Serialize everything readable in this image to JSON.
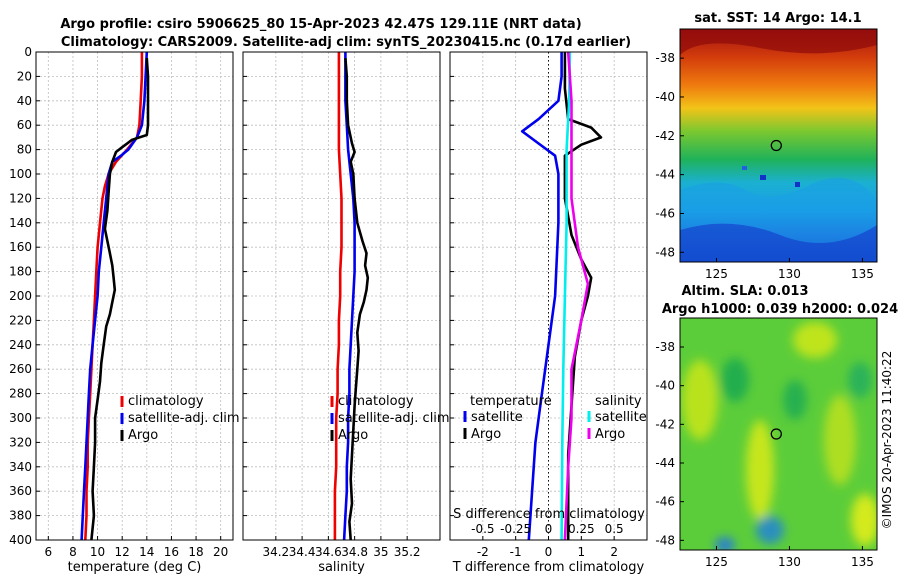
{
  "header": {
    "title_line1": "Argo profile: csiro 5906625_80 15-Apr-2023 42.47S 129.11E (NRT data)",
    "title_line2": "Climatology: CARS2009. Satellite-adj clim: synTS_20230415.nc (0.17d earlier)"
  },
  "colors": {
    "climatology": "#ee0000",
    "satellite": "#0000ee",
    "argo": "#000000",
    "sal_satellite": "#00eeee",
    "sal_argo": "#ee00ee"
  },
  "depth_axis": {
    "ticks": [
      0,
      20,
      40,
      60,
      80,
      100,
      120,
      140,
      160,
      180,
      200,
      220,
      240,
      260,
      280,
      300,
      320,
      340,
      360,
      380,
      400
    ]
  },
  "chart_data": [
    {
      "type": "line",
      "id": "temperature",
      "xlabel": "temperature (deg C)",
      "ylabel": "depth",
      "xlim": [
        5,
        21
      ],
      "ylim": [
        400,
        0
      ],
      "xticks": [
        6,
        8,
        10,
        12,
        14,
        16,
        18,
        20
      ],
      "grid": true,
      "legend": [
        "climatology",
        "satellite-adj. clim",
        "Argo"
      ],
      "series": [
        {
          "name": "climatology",
          "color": "climatology",
          "points": [
            [
              13.6,
              0
            ],
            [
              13.6,
              20
            ],
            [
              13.5,
              40
            ],
            [
              13.4,
              60
            ],
            [
              13.2,
              70
            ],
            [
              12.4,
              80
            ],
            [
              11.5,
              90
            ],
            [
              10.9,
              100
            ],
            [
              10.6,
              110
            ],
            [
              10.4,
              120
            ],
            [
              10.2,
              140
            ],
            [
              10.0,
              160
            ],
            [
              9.9,
              180
            ],
            [
              9.8,
              200
            ],
            [
              9.7,
              220
            ],
            [
              9.6,
              240
            ],
            [
              9.5,
              260
            ],
            [
              9.4,
              280
            ],
            [
              9.3,
              300
            ],
            [
              9.2,
              320
            ],
            [
              9.2,
              340
            ],
            [
              9.1,
              360
            ],
            [
              9.1,
              380
            ],
            [
              9.0,
              400
            ]
          ]
        },
        {
          "name": "satellite-adj. clim",
          "color": "satellite",
          "points": [
            [
              14.0,
              0
            ],
            [
              13.9,
              20
            ],
            [
              13.8,
              40
            ],
            [
              13.6,
              60
            ],
            [
              13.2,
              70
            ],
            [
              12.5,
              80
            ],
            [
              11.9,
              85
            ],
            [
              11.2,
              90
            ],
            [
              10.9,
              100
            ],
            [
              10.7,
              120
            ],
            [
              10.5,
              140
            ],
            [
              10.3,
              160
            ],
            [
              10.1,
              180
            ],
            [
              10.0,
              200
            ],
            [
              9.9,
              210
            ],
            [
              9.6,
              240
            ],
            [
              9.4,
              260
            ],
            [
              9.3,
              280
            ],
            [
              9.2,
              300
            ],
            [
              9.1,
              320
            ],
            [
              9.0,
              340
            ],
            [
              8.9,
              360
            ],
            [
              8.8,
              380
            ],
            [
              8.7,
              400
            ]
          ]
        },
        {
          "name": "Argo",
          "color": "argo",
          "points": [
            [
              14.0,
              5
            ],
            [
              14.1,
              20
            ],
            [
              14.1,
              40
            ],
            [
              14.1,
              60
            ],
            [
              14.0,
              68
            ],
            [
              12.8,
              72
            ],
            [
              12.0,
              78
            ],
            [
              11.5,
              82
            ],
            [
              11.2,
              90
            ],
            [
              11.0,
              100
            ],
            [
              10.9,
              115
            ],
            [
              10.8,
              130
            ],
            [
              10.6,
              145
            ],
            [
              10.8,
              155
            ],
            [
              11.0,
              165
            ],
            [
              11.2,
              175
            ],
            [
              11.3,
              185
            ],
            [
              11.4,
              195
            ],
            [
              11.2,
              205
            ],
            [
              11.0,
              215
            ],
            [
              10.7,
              225
            ],
            [
              10.5,
              240
            ],
            [
              10.3,
              255
            ],
            [
              10.2,
              270
            ],
            [
              10.0,
              285
            ],
            [
              9.8,
              300
            ],
            [
              9.8,
              320
            ],
            [
              9.7,
              340
            ],
            [
              9.6,
              360
            ],
            [
              9.7,
              380
            ],
            [
              9.5,
              400
            ]
          ]
        }
      ]
    },
    {
      "type": "line",
      "id": "salinity",
      "xlabel": "salinity",
      "ylabel": "depth",
      "xlim": [
        33.95,
        35.45
      ],
      "ylim": [
        400,
        0
      ],
      "xticks": [
        34.2,
        34.4,
        34.6,
        34.8,
        35.0,
        35.2
      ],
      "xticklabels": [
        "34.2",
        "34.4",
        "34.6",
        "34.8",
        "35",
        "35.2"
      ],
      "grid": true,
      "legend": [
        "climatology",
        "satellite-adj. clim",
        "Argo"
      ],
      "series": [
        {
          "name": "climatology",
          "color": "climatology",
          "points": [
            [
              34.68,
              0
            ],
            [
              34.68,
              20
            ],
            [
              34.68,
              40
            ],
            [
              34.68,
              60
            ],
            [
              34.68,
              80
            ],
            [
              34.69,
              100
            ],
            [
              34.7,
              120
            ],
            [
              34.7,
              140
            ],
            [
              34.7,
              160
            ],
            [
              34.69,
              180
            ],
            [
              34.69,
              200
            ],
            [
              34.68,
              220
            ],
            [
              34.68,
              240
            ],
            [
              34.67,
              260
            ],
            [
              34.67,
              280
            ],
            [
              34.66,
              300
            ],
            [
              34.66,
              320
            ],
            [
              34.66,
              340
            ],
            [
              34.65,
              360
            ],
            [
              34.65,
              380
            ],
            [
              34.65,
              400
            ]
          ]
        },
        {
          "name": "satellite-adj. clim",
          "color": "satellite",
          "points": [
            [
              34.73,
              0
            ],
            [
              34.73,
              20
            ],
            [
              34.73,
              40
            ],
            [
              34.74,
              60
            ],
            [
              34.75,
              80
            ],
            [
              34.77,
              100
            ],
            [
              34.79,
              120
            ],
            [
              34.8,
              140
            ],
            [
              34.8,
              160
            ],
            [
              34.8,
              180
            ],
            [
              34.79,
              200
            ],
            [
              34.78,
              220
            ],
            [
              34.77,
              240
            ],
            [
              34.76,
              260
            ],
            [
              34.76,
              280
            ],
            [
              34.75,
              300
            ],
            [
              34.75,
              320
            ],
            [
              34.74,
              340
            ],
            [
              34.74,
              360
            ],
            [
              34.73,
              380
            ],
            [
              34.72,
              400
            ]
          ]
        },
        {
          "name": "Argo",
          "color": "argo",
          "points": [
            [
              34.73,
              5
            ],
            [
              34.74,
              20
            ],
            [
              34.74,
              40
            ],
            [
              34.75,
              60
            ],
            [
              34.78,
              75
            ],
            [
              34.8,
              82
            ],
            [
              34.77,
              90
            ],
            [
              34.79,
              100
            ],
            [
              34.8,
              120
            ],
            [
              34.82,
              140
            ],
            [
              34.86,
              155
            ],
            [
              34.89,
              165
            ],
            [
              34.88,
              175
            ],
            [
              34.9,
              185
            ],
            [
              34.89,
              195
            ],
            [
              34.87,
              205
            ],
            [
              34.84,
              215
            ],
            [
              34.82,
              230
            ],
            [
              34.83,
              245
            ],
            [
              34.82,
              260
            ],
            [
              34.81,
              275
            ],
            [
              34.8,
              290
            ],
            [
              34.79,
              310
            ],
            [
              34.78,
              330
            ],
            [
              34.77,
              350
            ],
            [
              34.78,
              370
            ],
            [
              34.76,
              385
            ],
            [
              34.77,
              400
            ]
          ]
        }
      ]
    },
    {
      "type": "line",
      "id": "difference",
      "xlabel": "T difference from climatology",
      "ylabel": "depth",
      "xlim": [
        -3,
        3
      ],
      "ylim": [
        400,
        0
      ],
      "xticks": [
        -2,
        -1,
        0,
        1,
        2
      ],
      "top_axis": {
        "label": "S difference from climatology",
        "ticks": [
          -0.5,
          -0.25,
          0,
          0.25,
          0.5
        ],
        "ticklabels": [
          "-0.5",
          "-0.25",
          "0",
          "0.25",
          "0.5"
        ]
      },
      "grid": true,
      "legend_left": {
        "title": "temperature",
        "entries": [
          "satellite",
          "Argo"
        ]
      },
      "legend_right": {
        "title": "salinity",
        "entries": [
          "satellite",
          "Argo"
        ]
      },
      "series": [
        {
          "name": "temperature satellite",
          "color": "satellite",
          "points": [
            [
              0.4,
              0
            ],
            [
              0.4,
              20
            ],
            [
              0.3,
              40
            ],
            [
              -0.3,
              55
            ],
            [
              -0.8,
              65
            ],
            [
              -0.3,
              75
            ],
            [
              0.2,
              85
            ],
            [
              0.3,
              100
            ],
            [
              0.3,
              140
            ],
            [
              0.2,
              200
            ],
            [
              0.0,
              240
            ],
            [
              -0.2,
              280
            ],
            [
              -0.4,
              320
            ],
            [
              -0.5,
              360
            ],
            [
              -0.6,
              400
            ]
          ]
        },
        {
          "name": "temperature Argo",
          "color": "argo",
          "points": [
            [
              0.5,
              0
            ],
            [
              0.5,
              30
            ],
            [
              0.6,
              55
            ],
            [
              1.3,
              62
            ],
            [
              1.6,
              70
            ],
            [
              1.0,
              76
            ],
            [
              0.5,
              85
            ],
            [
              0.5,
              120
            ],
            [
              0.7,
              150
            ],
            [
              1.0,
              170
            ],
            [
              1.3,
              185
            ],
            [
              1.2,
              200
            ],
            [
              1.0,
              220
            ],
            [
              0.8,
              250
            ],
            [
              0.7,
              290
            ],
            [
              0.6,
              330
            ],
            [
              0.6,
              360
            ],
            [
              0.6,
              400
            ]
          ]
        },
        {
          "name": "salinity satellite",
          "color": "sal_satellite",
          "points": [
            [
              0.65,
              0
            ],
            [
              0.63,
              40
            ],
            [
              0.55,
              80
            ],
            [
              0.55,
              140
            ],
            [
              0.5,
              200
            ],
            [
              0.45,
              260
            ],
            [
              0.42,
              320
            ],
            [
              0.4,
              400
            ]
          ]
        },
        {
          "name": "salinity Argo",
          "color": "sal_argo",
          "points": [
            [
              0.6,
              0
            ],
            [
              0.7,
              40
            ],
            [
              0.7,
              80
            ],
            [
              0.7,
              120
            ],
            [
              0.9,
              160
            ],
            [
              1.2,
              190
            ],
            [
              1.0,
              220
            ],
            [
              0.7,
              260
            ],
            [
              0.7,
              300
            ],
            [
              0.6,
              340
            ],
            [
              0.5,
              400
            ]
          ]
        }
      ]
    },
    {
      "type": "heatmap",
      "id": "sst_map",
      "title": "sat. SST: 14 Argo: 14.1",
      "xticks": [
        125,
        130,
        135
      ],
      "yticks": [
        -38,
        -40,
        -42,
        -44,
        -46,
        -48
      ],
      "xlim": [
        122.5,
        136
      ],
      "ylim": [
        -48.5,
        -36.5
      ],
      "argo_location": [
        129.1,
        -42.5
      ],
      "colormap": "jet"
    },
    {
      "type": "heatmap",
      "id": "sla_map",
      "title_line1": "Altim. SLA: 0.013",
      "title_line2": "Argo h1000: 0.039 h2000: 0.024",
      "xticks": [
        125,
        130,
        135
      ],
      "yticks": [
        -38,
        -40,
        -42,
        -44,
        -46,
        -48
      ],
      "xlim": [
        122.5,
        136
      ],
      "ylim": [
        -48.5,
        -36.5
      ],
      "argo_location": [
        129.1,
        -42.5
      ],
      "colormap": "jet"
    }
  ],
  "footer": {
    "copyright": "©IMOS 20-Apr-2023 11:40:22"
  }
}
